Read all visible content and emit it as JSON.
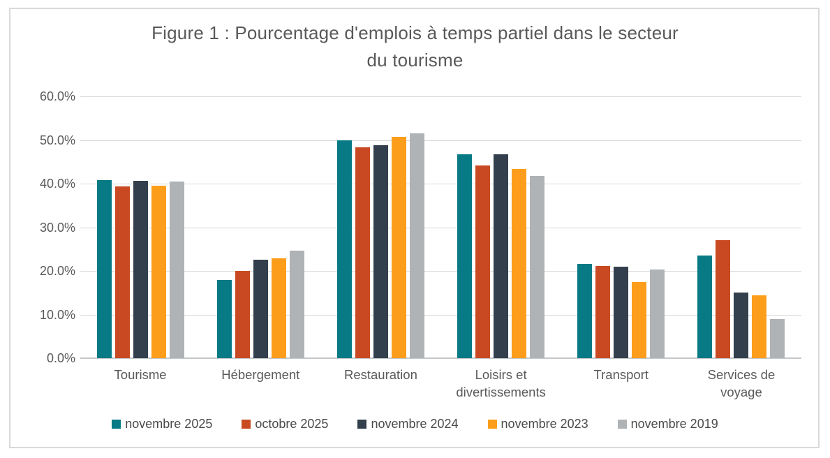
{
  "chart_data": {
    "type": "bar",
    "title": "Figure 1 : Pourcentage d'emplois à temps partiel dans le secteur du tourisme",
    "title_lines": [
      "Figure 1 : Pourcentage d'emplois à temps partiel dans le secteur",
      "du tourisme"
    ],
    "categories": [
      "Tourisme",
      "Hébergement",
      "Restauration",
      "Loisirs et divertissements",
      "Transport",
      "Services de voyage"
    ],
    "series": [
      {
        "name": "novembre 2025",
        "color": "#077A85",
        "values": [
          40.8,
          17.9,
          50.0,
          46.8,
          21.6,
          23.5
        ]
      },
      {
        "name": "octobre 2025",
        "color": "#C94A22",
        "values": [
          39.3,
          20.0,
          48.3,
          44.1,
          21.1,
          27.0
        ]
      },
      {
        "name": "novembre 2024",
        "color": "#333F4C",
        "values": [
          40.7,
          22.6,
          48.8,
          46.8,
          20.9,
          15.0
        ]
      },
      {
        "name": "novembre 2023",
        "color": "#FC9E1C",
        "values": [
          39.5,
          22.9,
          50.8,
          43.3,
          17.4,
          14.4
        ]
      },
      {
        "name": "novembre 2019",
        "color": "#AFB3B6",
        "values": [
          40.5,
          24.6,
          51.6,
          41.7,
          20.4,
          8.9
        ]
      }
    ],
    "y_axis": {
      "min": 0,
      "max": 60,
      "step": 10,
      "tick_labels": [
        "0.0%",
        "10.0%",
        "20.0%",
        "30.0%",
        "40.0%",
        "50.0%",
        "60.0%"
      ]
    },
    "grid": true,
    "legend_position": "bottom",
    "colors": {
      "grid": "#D9D9D9",
      "axis": "#C3C7CA",
      "text": "#595959",
      "frame_border": "#D9D9D9",
      "background": "#FFFFFF"
    }
  }
}
